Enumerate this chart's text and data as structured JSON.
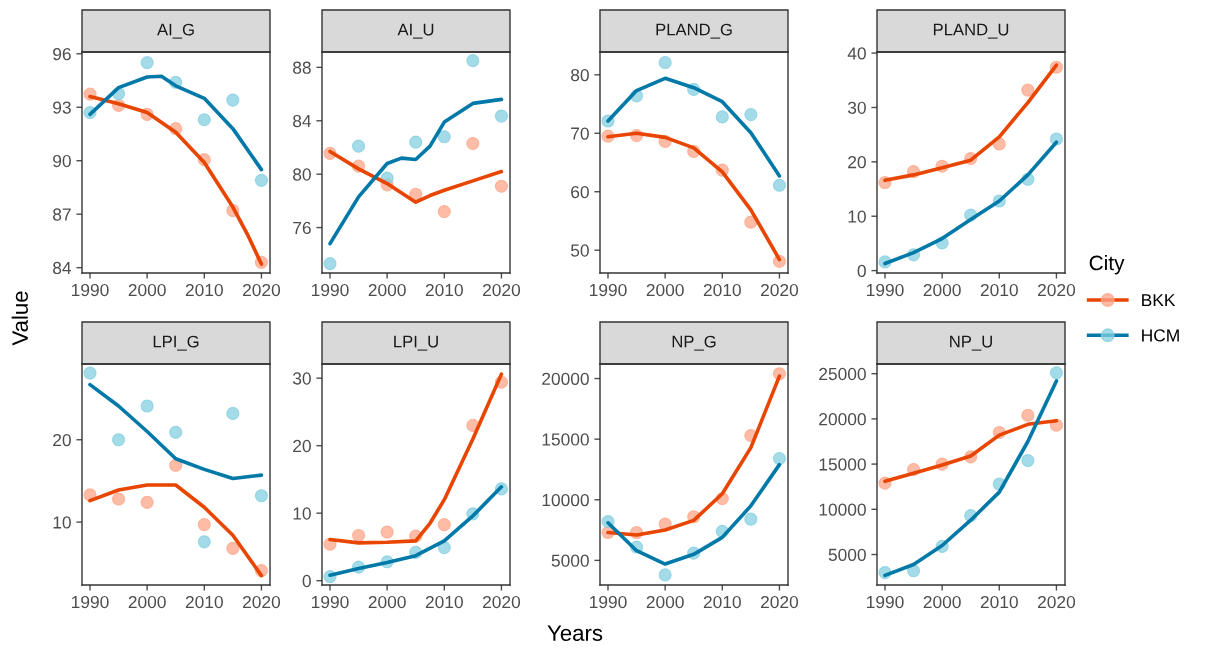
{
  "chart_data": [
    {
      "type": "scatter",
      "title": "AI_G",
      "ylabel": "Value",
      "legend_title": "City",
      "legend": "right",
      "xlim": [
        1988.6,
        2021.5
      ],
      "xticks": [
        1990,
        2000,
        2010,
        2020
      ],
      "ylim": [
        83.7,
        96.1
      ],
      "yticks": [
        84,
        87,
        90,
        93,
        96
      ],
      "x": [
        1990,
        1995,
        2000,
        2005,
        2010,
        2015,
        2020
      ],
      "series": [
        {
          "name": "BKK",
          "color": "#fda68a",
          "marker": "circle",
          "values": [
            93.74,
            93.1,
            92.6,
            91.8,
            90.06,
            87.2,
            84.3
          ]
        },
        {
          "name": "HCM",
          "color": "#86cfe0",
          "marker": "circle",
          "values": [
            92.7,
            93.76,
            95.5,
            94.4,
            92.3,
            93.4,
            88.9
          ]
        },
        {
          "type": "line",
          "color": "#e84500",
          "marker": "none",
          "x": [
            1990,
            1995,
            2000,
            2005,
            2010,
            2015,
            2017.5,
            2020
          ],
          "values": [
            93.6,
            93.2,
            92.7,
            91.6,
            89.9,
            87.4,
            85.9,
            84.2
          ]
        },
        {
          "type": "line",
          "color": "#0079a8",
          "marker": "none",
          "x": [
            1990,
            1995,
            2000,
            2002.5,
            2005,
            2010,
            2015,
            2020
          ],
          "values": [
            92.6,
            94.1,
            94.7,
            94.74,
            94.2,
            93.5,
            91.8,
            89.5
          ]
        }
      ]
    },
    {
      "type": "scatter",
      "title": "AI_U",
      "xlim": [
        1988.6,
        2021.5
      ],
      "xticks": [
        1990,
        2000,
        2010,
        2020
      ],
      "ylim": [
        72.6,
        89.15
      ],
      "yticks": [
        76,
        80,
        84,
        88
      ],
      "x": [
        1990,
        1995,
        2000,
        2005,
        2010,
        2015,
        2020
      ],
      "series": [
        {
          "color": "#fda68a",
          "marker": "circle",
          "values": [
            81.56,
            80.6,
            79.2,
            78.5,
            77.2,
            82.3,
            79.1
          ]
        },
        {
          "color": "#86cfe0",
          "marker": "circle",
          "values": [
            73.3,
            82.1,
            79.7,
            82.4,
            82.8,
            88.5,
            84.35
          ]
        },
        {
          "type": "line",
          "color": "#e84500",
          "marker": "none",
          "x": [
            1990,
            1995,
            2000,
            2005,
            2007.5,
            2010,
            2015,
            2020
          ],
          "values": [
            81.7,
            80.4,
            79.3,
            77.9,
            78.4,
            78.8,
            79.5,
            80.2
          ]
        },
        {
          "type": "line",
          "color": "#0079a8",
          "marker": "none",
          "x": [
            1990,
            1995,
            2000,
            2002.5,
            2005,
            2007.5,
            2010,
            2015,
            2020
          ],
          "values": [
            74.8,
            78.3,
            80.8,
            81.2,
            81.1,
            82.1,
            83.9,
            85.3,
            85.6
          ]
        }
      ]
    },
    {
      "type": "scatter",
      "title": "PLAND_G",
      "xlim": [
        1988.6,
        2021.5
      ],
      "xticks": [
        1990,
        2000,
        2010,
        2020
      ],
      "ylim": [
        46.1,
        83.9
      ],
      "yticks": [
        50,
        60,
        70,
        80
      ],
      "x": [
        1990,
        1995,
        2000,
        2005,
        2010,
        2015,
        2020
      ],
      "series": [
        {
          "color": "#fda68a",
          "marker": "circle",
          "values": [
            69.5,
            69.6,
            68.6,
            66.9,
            63.7,
            54.8,
            48.1
          ]
        },
        {
          "color": "#86cfe0",
          "marker": "circle",
          "values": [
            72.1,
            76.4,
            82.1,
            77.5,
            72.8,
            73.2,
            61.1
          ]
        },
        {
          "type": "line",
          "color": "#e84500",
          "marker": "none",
          "x": [
            1990,
            1995,
            2000,
            2005,
            2010,
            2015,
            2020
          ],
          "values": [
            69.4,
            70.0,
            69.3,
            67.5,
            63.4,
            56.9,
            48.4
          ]
        },
        {
          "type": "line",
          "color": "#0079a8",
          "marker": "none",
          "x": [
            1990,
            1995,
            2000,
            2005,
            2010,
            2015,
            2020
          ],
          "values": [
            72.1,
            77.3,
            79.4,
            77.8,
            75.4,
            70.1,
            62.7
          ]
        }
      ]
    },
    {
      "type": "scatter",
      "title": "PLAND_U",
      "xlim": [
        1988.6,
        2021.5
      ],
      "xticks": [
        1990,
        2000,
        2010,
        2020
      ],
      "ylim": [
        -0.44,
        40.2
      ],
      "yticks": [
        0,
        10,
        20,
        30,
        40
      ],
      "x": [
        1990,
        1995,
        2000,
        2005,
        2010,
        2015,
        2020
      ],
      "series": [
        {
          "color": "#fda68a",
          "marker": "circle",
          "values": [
            16.2,
            18.2,
            19.2,
            20.6,
            23.3,
            33.2,
            37.4
          ]
        },
        {
          "color": "#86cfe0",
          "marker": "circle",
          "values": [
            1.6,
            2.9,
            5.1,
            10.2,
            12.8,
            16.8,
            24.2
          ]
        },
        {
          "type": "line",
          "color": "#e84500",
          "marker": "none",
          "x": [
            1990,
            1995,
            2000,
            2005,
            2010,
            2015,
            2020
          ],
          "values": [
            16.6,
            17.6,
            18.9,
            20.3,
            24.6,
            30.9,
            37.8
          ]
        },
        {
          "type": "line",
          "color": "#0079a8",
          "marker": "none",
          "x": [
            1990,
            1995,
            2000,
            2005,
            2010,
            2015,
            2020
          ],
          "values": [
            1.3,
            3.3,
            5.9,
            9.4,
            12.8,
            17.6,
            23.6
          ]
        }
      ]
    },
    {
      "type": "scatter",
      "title": "LPI_G",
      "xlim": [
        1988.6,
        2021.5
      ],
      "xticks": [
        1990,
        2000,
        2010,
        2020
      ],
      "ylim": [
        2.36,
        29.2
      ],
      "yticks": [
        10,
        20
      ],
      "x": [
        1990,
        1995,
        2000,
        2005,
        2010,
        2015,
        2020
      ],
      "series": [
        {
          "color": "#fda68a",
          "marker": "circle",
          "values": [
            13.3,
            12.8,
            12.4,
            16.9,
            9.7,
            6.8,
            4.1
          ]
        },
        {
          "color": "#86cfe0",
          "marker": "circle",
          "values": [
            28.1,
            20.0,
            24.1,
            20.9,
            7.6,
            23.2,
            13.2
          ]
        },
        {
          "type": "line",
          "color": "#e84500",
          "marker": "none",
          "x": [
            1990,
            1995,
            2000,
            2005,
            2010,
            2015,
            2020
          ],
          "values": [
            12.6,
            13.9,
            14.5,
            14.5,
            11.8,
            8.4,
            3.5
          ]
        },
        {
          "type": "line",
          "color": "#0079a8",
          "marker": "none",
          "x": [
            1990,
            1995,
            2000,
            2005,
            2010,
            2015,
            2020
          ],
          "values": [
            26.7,
            24.1,
            21.0,
            17.7,
            16.4,
            15.3,
            15.7
          ]
        }
      ]
    },
    {
      "type": "scatter",
      "title": "LPI_U",
      "xlim": [
        1988.6,
        2021.5
      ],
      "xticks": [
        1990,
        2000,
        2010,
        2020
      ],
      "ylim": [
        -0.64,
        32.1
      ],
      "yticks": [
        0,
        10,
        20,
        30
      ],
      "x": [
        1990,
        1995,
        2000,
        2005,
        2010,
        2015,
        2020
      ],
      "series": [
        {
          "color": "#fda68a",
          "marker": "circle",
          "values": [
            5.4,
            6.7,
            7.2,
            6.6,
            8.3,
            23.0,
            29.4
          ]
        },
        {
          "color": "#86cfe0",
          "marker": "circle",
          "values": [
            0.6,
            2.0,
            2.8,
            4.2,
            4.9,
            9.9,
            13.6
          ]
        },
        {
          "type": "line",
          "color": "#e84500",
          "marker": "none",
          "x": [
            1990,
            1995,
            2000,
            2005,
            2007.5,
            2010,
            2015,
            2020
          ],
          "values": [
            6.1,
            5.6,
            5.7,
            5.9,
            8.5,
            12.0,
            21.0,
            30.6
          ]
        },
        {
          "type": "line",
          "color": "#0079a8",
          "marker": "none",
          "x": [
            1990,
            1995,
            2000,
            2005,
            2010,
            2015,
            2020
          ],
          "values": [
            0.8,
            1.8,
            2.7,
            3.7,
            5.9,
            9.6,
            13.9
          ]
        }
      ]
    },
    {
      "type": "scatter",
      "title": "NP_G",
      "annotations": [
        "Years"
      ],
      "xlim": [
        1988.6,
        2021.5
      ],
      "xticks": [
        1990,
        2000,
        2010,
        2020
      ],
      "ylim": [
        2970,
        21200
      ],
      "yticks": [
        5000,
        10000,
        15000,
        20000
      ],
      "x": [
        1990,
        1995,
        2000,
        2005,
        2010,
        2015,
        2020
      ],
      "series": [
        {
          "color": "#fda68a",
          "marker": "circle",
          "values": [
            7300,
            7300,
            8000,
            8600,
            10100,
            15300,
            20400
          ]
        },
        {
          "color": "#86cfe0",
          "marker": "circle",
          "values": [
            8200,
            6100,
            3800,
            5600,
            7400,
            8400,
            13400
          ]
        },
        {
          "type": "line",
          "color": "#e84500",
          "marker": "none",
          "x": [
            1990,
            1995,
            2000,
            2005,
            2010,
            2015,
            2020
          ],
          "values": [
            7300,
            7100,
            7500,
            8300,
            10500,
            14300,
            20200
          ]
        },
        {
          "type": "line",
          "color": "#0079a8",
          "marker": "none",
          "x": [
            1990,
            1995,
            2000,
            2005,
            2010,
            2015,
            2020
          ],
          "values": [
            8100,
            5800,
            4700,
            5500,
            6900,
            9500,
            12900
          ]
        }
      ]
    },
    {
      "type": "scatter",
      "title": "NP_U",
      "xlim": [
        1988.6,
        2021.5
      ],
      "xticks": [
        1990,
        2000,
        2010,
        2020
      ],
      "ylim": [
        1630,
        26070
      ],
      "yticks": [
        5000,
        10000,
        15000,
        20000,
        25000
      ],
      "x": [
        1990,
        1995,
        2000,
        2005,
        2010,
        2015,
        2020
      ],
      "series": [
        {
          "color": "#fda68a",
          "marker": "circle",
          "values": [
            12900,
            14400,
            15000,
            15800,
            18500,
            20400,
            19300
          ]
        },
        {
          "color": "#86cfe0",
          "marker": "circle",
          "values": [
            3000,
            3200,
            5900,
            9300,
            12800,
            15400,
            25100
          ]
        },
        {
          "type": "line",
          "color": "#e84500",
          "marker": "none",
          "x": [
            1990,
            1995,
            2000,
            2005,
            2010,
            2015,
            2020
          ],
          "values": [
            13100,
            14000,
            14900,
            15900,
            18200,
            19400,
            19800
          ]
        },
        {
          "type": "line",
          "color": "#0079a8",
          "marker": "none",
          "x": [
            1990,
            1995,
            2000,
            2005,
            2010,
            2015,
            2020
          ],
          "values": [
            2700,
            3900,
            6000,
            8800,
            11900,
            17500,
            24200
          ]
        }
      ]
    }
  ]
}
